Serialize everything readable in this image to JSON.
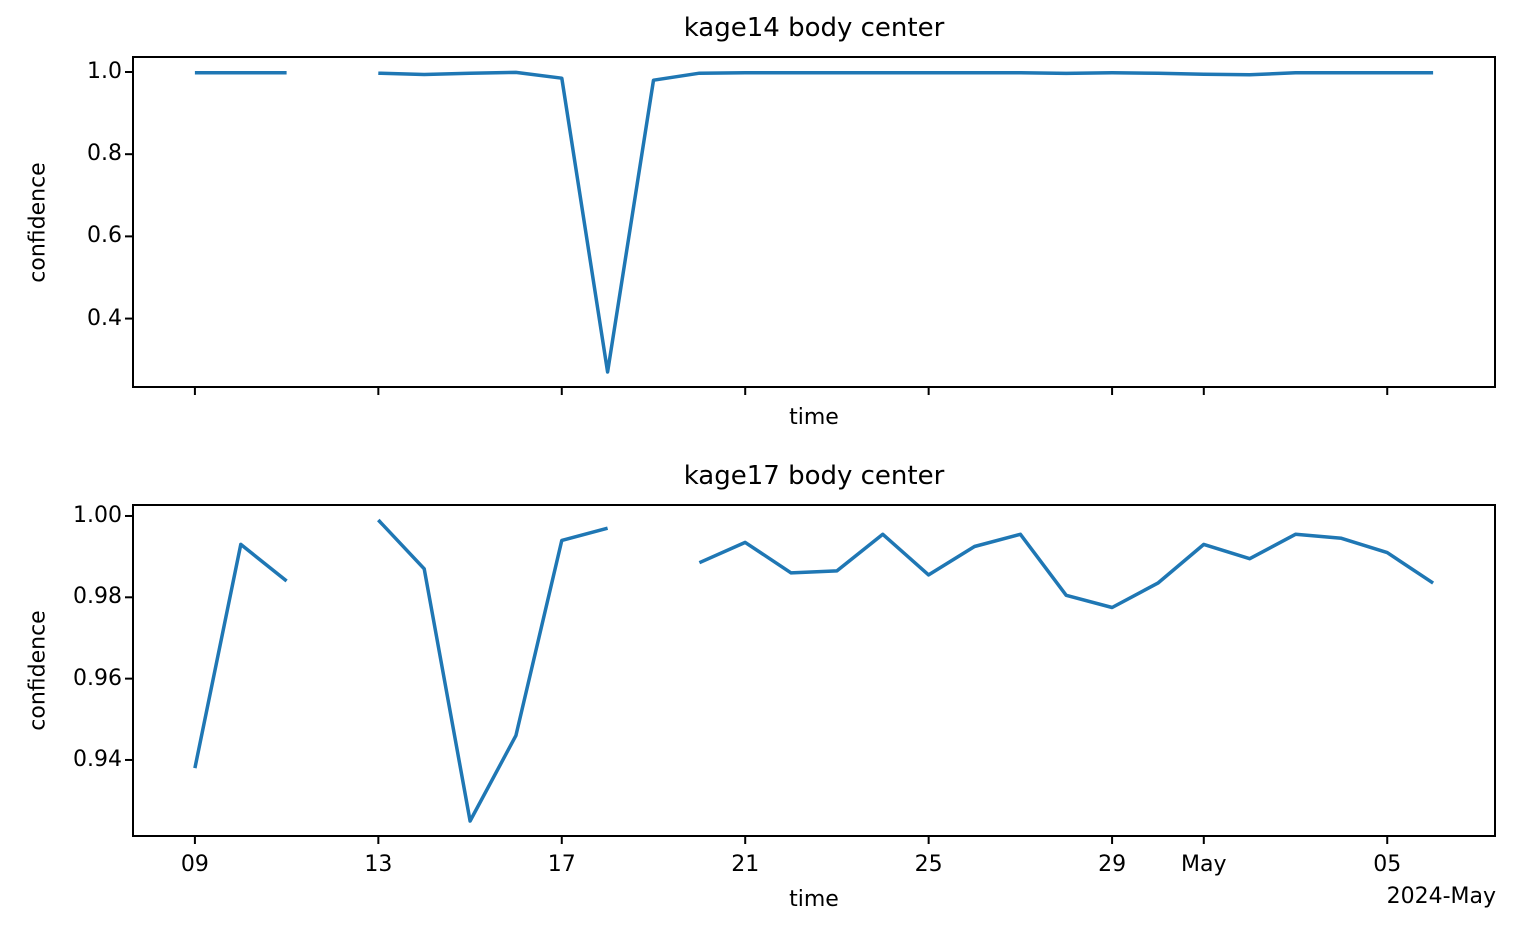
{
  "figure": {
    "background": "#ffffff",
    "text_color": "#000000",
    "spine_color": "#000000",
    "line_color": "#1f77b4"
  },
  "chart_data": [
    {
      "type": "line",
      "title": "kage14 body center",
      "xlabel": "time",
      "ylabel": "confidence",
      "x_encoding": "day number of April 2024; 31..36 represent May 01..06",
      "xlim": [
        7.65,
        37.35
      ],
      "ylim": [
        0.2335,
        1.0365
      ],
      "x_ticks": [
        9,
        13,
        17,
        21,
        25,
        29,
        31,
        35
      ],
      "x_tick_labels": [],
      "x_tick_labels_visible": false,
      "y_ticks": [
        1.0,
        0.8,
        0.6,
        0.4
      ],
      "y_tick_labels": [
        "1.0",
        "0.8",
        "0.6",
        "0.4"
      ],
      "grid": false,
      "legend": "none",
      "segments": [
        {
          "x": [
            9,
            10,
            11
          ],
          "y": [
            0.998,
            0.998,
            0.998
          ]
        },
        {
          "x": [
            13,
            14,
            15,
            16,
            17,
            18,
            19,
            20,
            21,
            22,
            23,
            24,
            25,
            26,
            27,
            28,
            29,
            30,
            31,
            32,
            33,
            34,
            35,
            36
          ],
          "y": [
            0.997,
            0.994,
            0.997,
            0.999,
            0.985,
            0.27,
            0.98,
            0.997,
            0.998,
            0.998,
            0.998,
            0.998,
            0.998,
            0.998,
            0.998,
            0.9965,
            0.998,
            0.997,
            0.9945,
            0.9935,
            0.998,
            0.998,
            0.998,
            0.998
          ]
        }
      ]
    },
    {
      "type": "line",
      "title": "kage17 body center",
      "xlabel": "time",
      "ylabel": "confidence",
      "x_encoding": "day number of April 2024; 31..36 represent May 01..06",
      "x_offset_text": "2024-May",
      "xlim": [
        7.65,
        37.35
      ],
      "ylim": [
        0.9213,
        1.0027
      ],
      "x_ticks": [
        9,
        13,
        17,
        21,
        25,
        29,
        31,
        35
      ],
      "x_tick_labels": [
        "09",
        "13",
        "17",
        "21",
        "25",
        "29",
        "May",
        "05"
      ],
      "x_tick_labels_visible": true,
      "y_ticks": [
        1.0,
        0.98,
        0.96,
        0.94
      ],
      "y_tick_labels": [
        "1.00",
        "0.98",
        "0.96",
        "0.94"
      ],
      "grid": false,
      "legend": "none",
      "segments": [
        {
          "x": [
            9,
            10,
            11
          ],
          "y": [
            0.938,
            0.993,
            0.984
          ]
        },
        {
          "x": [
            13,
            14,
            15,
            16,
            17,
            18
          ],
          "y": [
            0.999,
            0.987,
            0.925,
            0.946,
            0.994,
            0.997
          ]
        },
        {
          "x": [
            20,
            21,
            22,
            23,
            24,
            25,
            26,
            27,
            28,
            29,
            30,
            31,
            32,
            33,
            34,
            35,
            36
          ],
          "y": [
            0.9885,
            0.9935,
            0.986,
            0.9865,
            0.9955,
            0.9855,
            0.9925,
            0.9955,
            0.9805,
            0.9775,
            0.9835,
            0.993,
            0.9895,
            0.9955,
            0.9945,
            0.991,
            0.9835
          ]
        }
      ]
    }
  ]
}
